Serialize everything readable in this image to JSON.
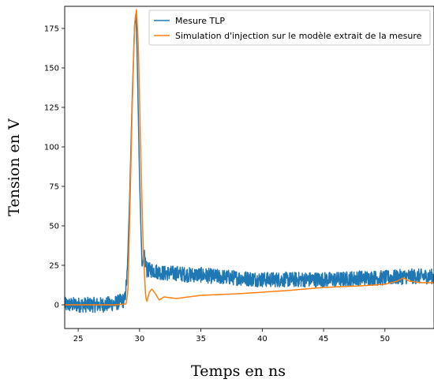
{
  "chart_data": {
    "type": "line",
    "title": "",
    "xlabel": "Temps en ns",
    "ylabel": "Tension en V",
    "xlim": [
      23.9,
      54.0
    ],
    "ylim": [
      -15,
      189
    ],
    "xticks": [
      25,
      30,
      35,
      40,
      45,
      50
    ],
    "yticks": [
      0,
      25,
      50,
      75,
      100,
      125,
      150,
      175
    ],
    "grid": false,
    "legend_position": "top-right",
    "series": [
      {
        "name": "Mesure TLP",
        "color": "#1f77b4",
        "noise_amplitude": 3,
        "x": [
          23.9,
          25.0,
          26.0,
          27.0,
          28.0,
          28.8,
          29.0,
          29.2,
          29.4,
          29.6,
          29.7,
          29.8,
          30.0,
          30.2,
          30.4,
          30.6,
          31.0,
          32.0,
          33.0,
          34.0,
          35.0,
          36.0,
          38.0,
          40.0,
          42.0,
          44.0,
          46.0,
          48.0,
          50.0,
          52.0,
          54.0
        ],
        "y": [
          0,
          0,
          0,
          0,
          1,
          3,
          20,
          70,
          130,
          178,
          184,
          160,
          80,
          25,
          30,
          22,
          22,
          20,
          20,
          19,
          19,
          18,
          17,
          16,
          16,
          16,
          16,
          17,
          17,
          18,
          18
        ]
      },
      {
        "name": "Simulation d'injection sur le modèle extrait de la mesure",
        "color": "#ff7f0e",
        "x": [
          23.9,
          28.0,
          28.9,
          29.05,
          29.2,
          29.4,
          29.6,
          29.75,
          29.9,
          30.1,
          30.3,
          30.5,
          30.6,
          30.8,
          31.0,
          31.3,
          31.6,
          32.0,
          33.0,
          35.0,
          38.0,
          40.0,
          42.0,
          45.0,
          48.0,
          50.0,
          51.0,
          51.5,
          52.0,
          53.0,
          54.0
        ],
        "y": [
          0,
          0,
          0.5,
          8,
          55,
          125,
          178,
          187,
          165,
          95,
          35,
          5,
          2,
          8,
          10,
          7,
          3,
          5,
          4,
          6,
          7,
          8,
          9,
          11,
          12,
          13,
          15,
          17,
          15,
          14,
          14
        ]
      }
    ]
  }
}
